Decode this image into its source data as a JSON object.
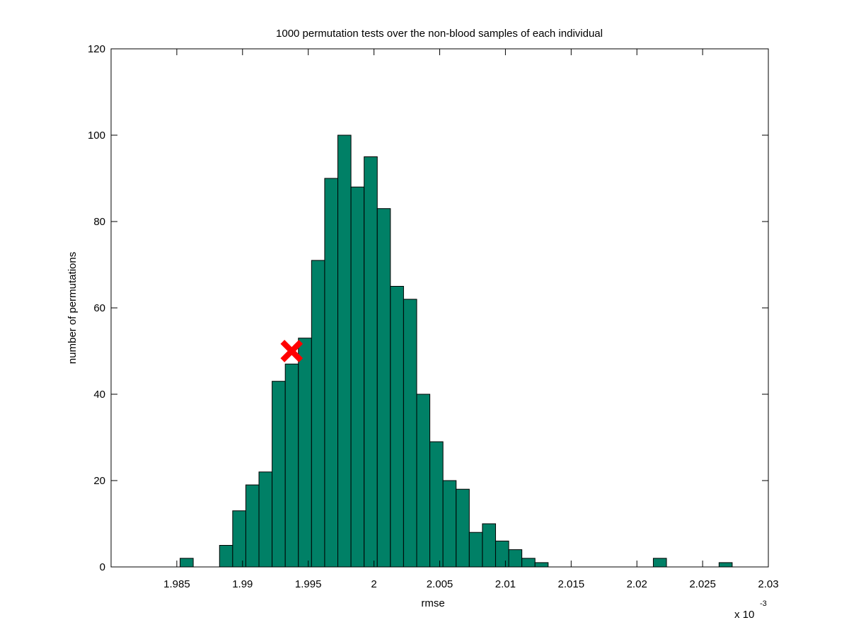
{
  "chart_data": {
    "type": "bar",
    "title": "1000 permutation tests over the non-blood samples of each individual",
    "xlabel": "rmse",
    "ylabel": "number of permutations",
    "x_multiplier_label": "x 10",
    "x_multiplier_exponent": "-3",
    "xlim": [
      1.98,
      2.03
    ],
    "ylim": [
      0,
      120
    ],
    "xticks": [
      1.985,
      1.99,
      1.995,
      2.0,
      2.005,
      2.01,
      2.015,
      2.02,
      2.025,
      2.03
    ],
    "xtick_labels": [
      "1.985",
      "1.99",
      "1.995",
      "2",
      "2.005",
      "2.01",
      "2.015",
      "2.02",
      "2.025",
      "2.03"
    ],
    "yticks": [
      0,
      20,
      40,
      60,
      80,
      100,
      120
    ],
    "ytick_labels": [
      "0",
      "20",
      "40",
      "60",
      "80",
      "100",
      "120"
    ],
    "bin_width": 0.001,
    "bins": [
      {
        "center": 1.98575,
        "count": 2
      },
      {
        "center": 1.98875,
        "count": 5
      },
      {
        "center": 1.98975,
        "count": 13
      },
      {
        "center": 1.99075,
        "count": 19
      },
      {
        "center": 1.99175,
        "count": 22
      },
      {
        "center": 1.99275,
        "count": 43
      },
      {
        "center": 1.99375,
        "count": 47
      },
      {
        "center": 1.99475,
        "count": 53
      },
      {
        "center": 1.99575,
        "count": 71
      },
      {
        "center": 1.99675,
        "count": 90
      },
      {
        "center": 1.99775,
        "count": 100
      },
      {
        "center": 1.99875,
        "count": 88
      },
      {
        "center": 1.99975,
        "count": 95
      },
      {
        "center": 2.00075,
        "count": 83
      },
      {
        "center": 2.00175,
        "count": 65
      },
      {
        "center": 2.00275,
        "count": 62
      },
      {
        "center": 2.00375,
        "count": 40
      },
      {
        "center": 2.00475,
        "count": 29
      },
      {
        "center": 2.00575,
        "count": 20
      },
      {
        "center": 2.00675,
        "count": 18
      },
      {
        "center": 2.00775,
        "count": 8
      },
      {
        "center": 2.00875,
        "count": 10
      },
      {
        "center": 2.00975,
        "count": 6
      },
      {
        "center": 2.01075,
        "count": 4
      },
      {
        "center": 2.01175,
        "count": 2
      },
      {
        "center": 2.01275,
        "count": 1
      },
      {
        "center": 2.02175,
        "count": 2
      },
      {
        "center": 2.02675,
        "count": 1
      }
    ],
    "marker": {
      "x": 1.99374,
      "y": 50,
      "symbol": "x",
      "color": "#ff0000"
    },
    "bar_color": "#008066",
    "grid": false
  }
}
